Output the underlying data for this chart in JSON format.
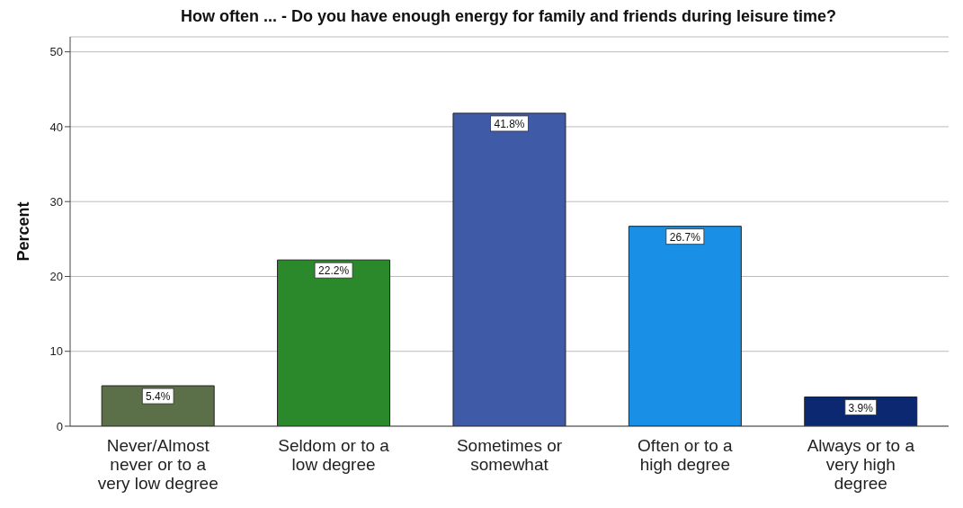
{
  "chart_data": {
    "type": "bar",
    "title": "How often ... - Do you have enough energy for family and friends during leisure time?",
    "ylabel": "Percent",
    "categories": [
      "Never/Almost never or to a very low degree",
      "Seldom or to a low degree",
      "Sometimes or somewhat",
      "Often or to a high degree",
      "Always or to a very high degree"
    ],
    "values": [
      5.4,
      22.2,
      41.8,
      26.7,
      3.9
    ],
    "colors": [
      "#5b7049",
      "#2b882b",
      "#3f5ba8",
      "#1990e6",
      "#0c2870"
    ],
    "value_labels": [
      "5.4%",
      "22.2%",
      "41.8%",
      "26.7%",
      "3.9%"
    ],
    "ylim": [
      0,
      52
    ],
    "yticks": [
      0,
      10,
      20,
      30,
      40,
      50
    ],
    "grid": "y",
    "legend": false
  }
}
